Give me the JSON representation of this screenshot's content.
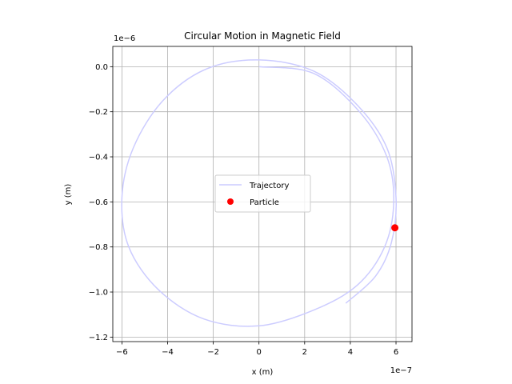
{
  "chart_data": {
    "type": "line",
    "title": "Circular Motion in Magnetic Field",
    "xlabel": "x (m)",
    "ylabel": "y (m)",
    "x_offset_label": "1e−7",
    "y_offset_label": "1e−6",
    "xlim": [
      -6.4,
      6.7
    ],
    "ylim": [
      -1.22,
      0.09
    ],
    "x_ticks": [
      {
        "value": -6,
        "label": "−6"
      },
      {
        "value": -4,
        "label": "−4"
      },
      {
        "value": -2,
        "label": "−2"
      },
      {
        "value": 0,
        "label": "0"
      },
      {
        "value": 2,
        "label": "2"
      },
      {
        "value": 4,
        "label": "4"
      },
      {
        "value": 6,
        "label": "6"
      }
    ],
    "y_ticks": [
      {
        "value": 0,
        "label": "0.0"
      },
      {
        "value": -0.2,
        "label": "−0.2"
      },
      {
        "value": -0.4,
        "label": "−0.4"
      },
      {
        "value": -0.6,
        "label": "−0.6"
      },
      {
        "value": -0.8,
        "label": "−0.8"
      },
      {
        "value": -1.0,
        "label": "−1.0"
      },
      {
        "value": -1.2,
        "label": "−1.2"
      }
    ],
    "grid": true,
    "legend_position": "center",
    "series": [
      {
        "name": "Trajectory",
        "kind": "line",
        "color": "#ccccff",
        "x": [
          0,
          2.4,
          4.4,
          5.6,
          5.9,
          5.5,
          4.3,
          2.4,
          0,
          -2.4,
          -4.4,
          -5.7,
          -6.0,
          -5.5,
          -4.2,
          -2.3,
          0,
          2.4,
          4.3,
          5.6,
          6.0,
          5.8,
          5.1,
          3.8
        ],
        "y": [
          0,
          -0.03,
          -0.2,
          -0.4,
          -0.6,
          -0.8,
          -0.97,
          -1.08,
          -1.15,
          -1.12,
          -0.99,
          -0.8,
          -0.58,
          -0.36,
          -0.15,
          -0.01,
          0.03,
          -0.02,
          -0.17,
          -0.36,
          -0.58,
          -0.78,
          -0.93,
          -1.05
        ]
      },
      {
        "name": "Particle",
        "kind": "point",
        "color": "#ff0000",
        "x": [
          5.95
        ],
        "y": [
          -0.715
        ]
      }
    ]
  }
}
